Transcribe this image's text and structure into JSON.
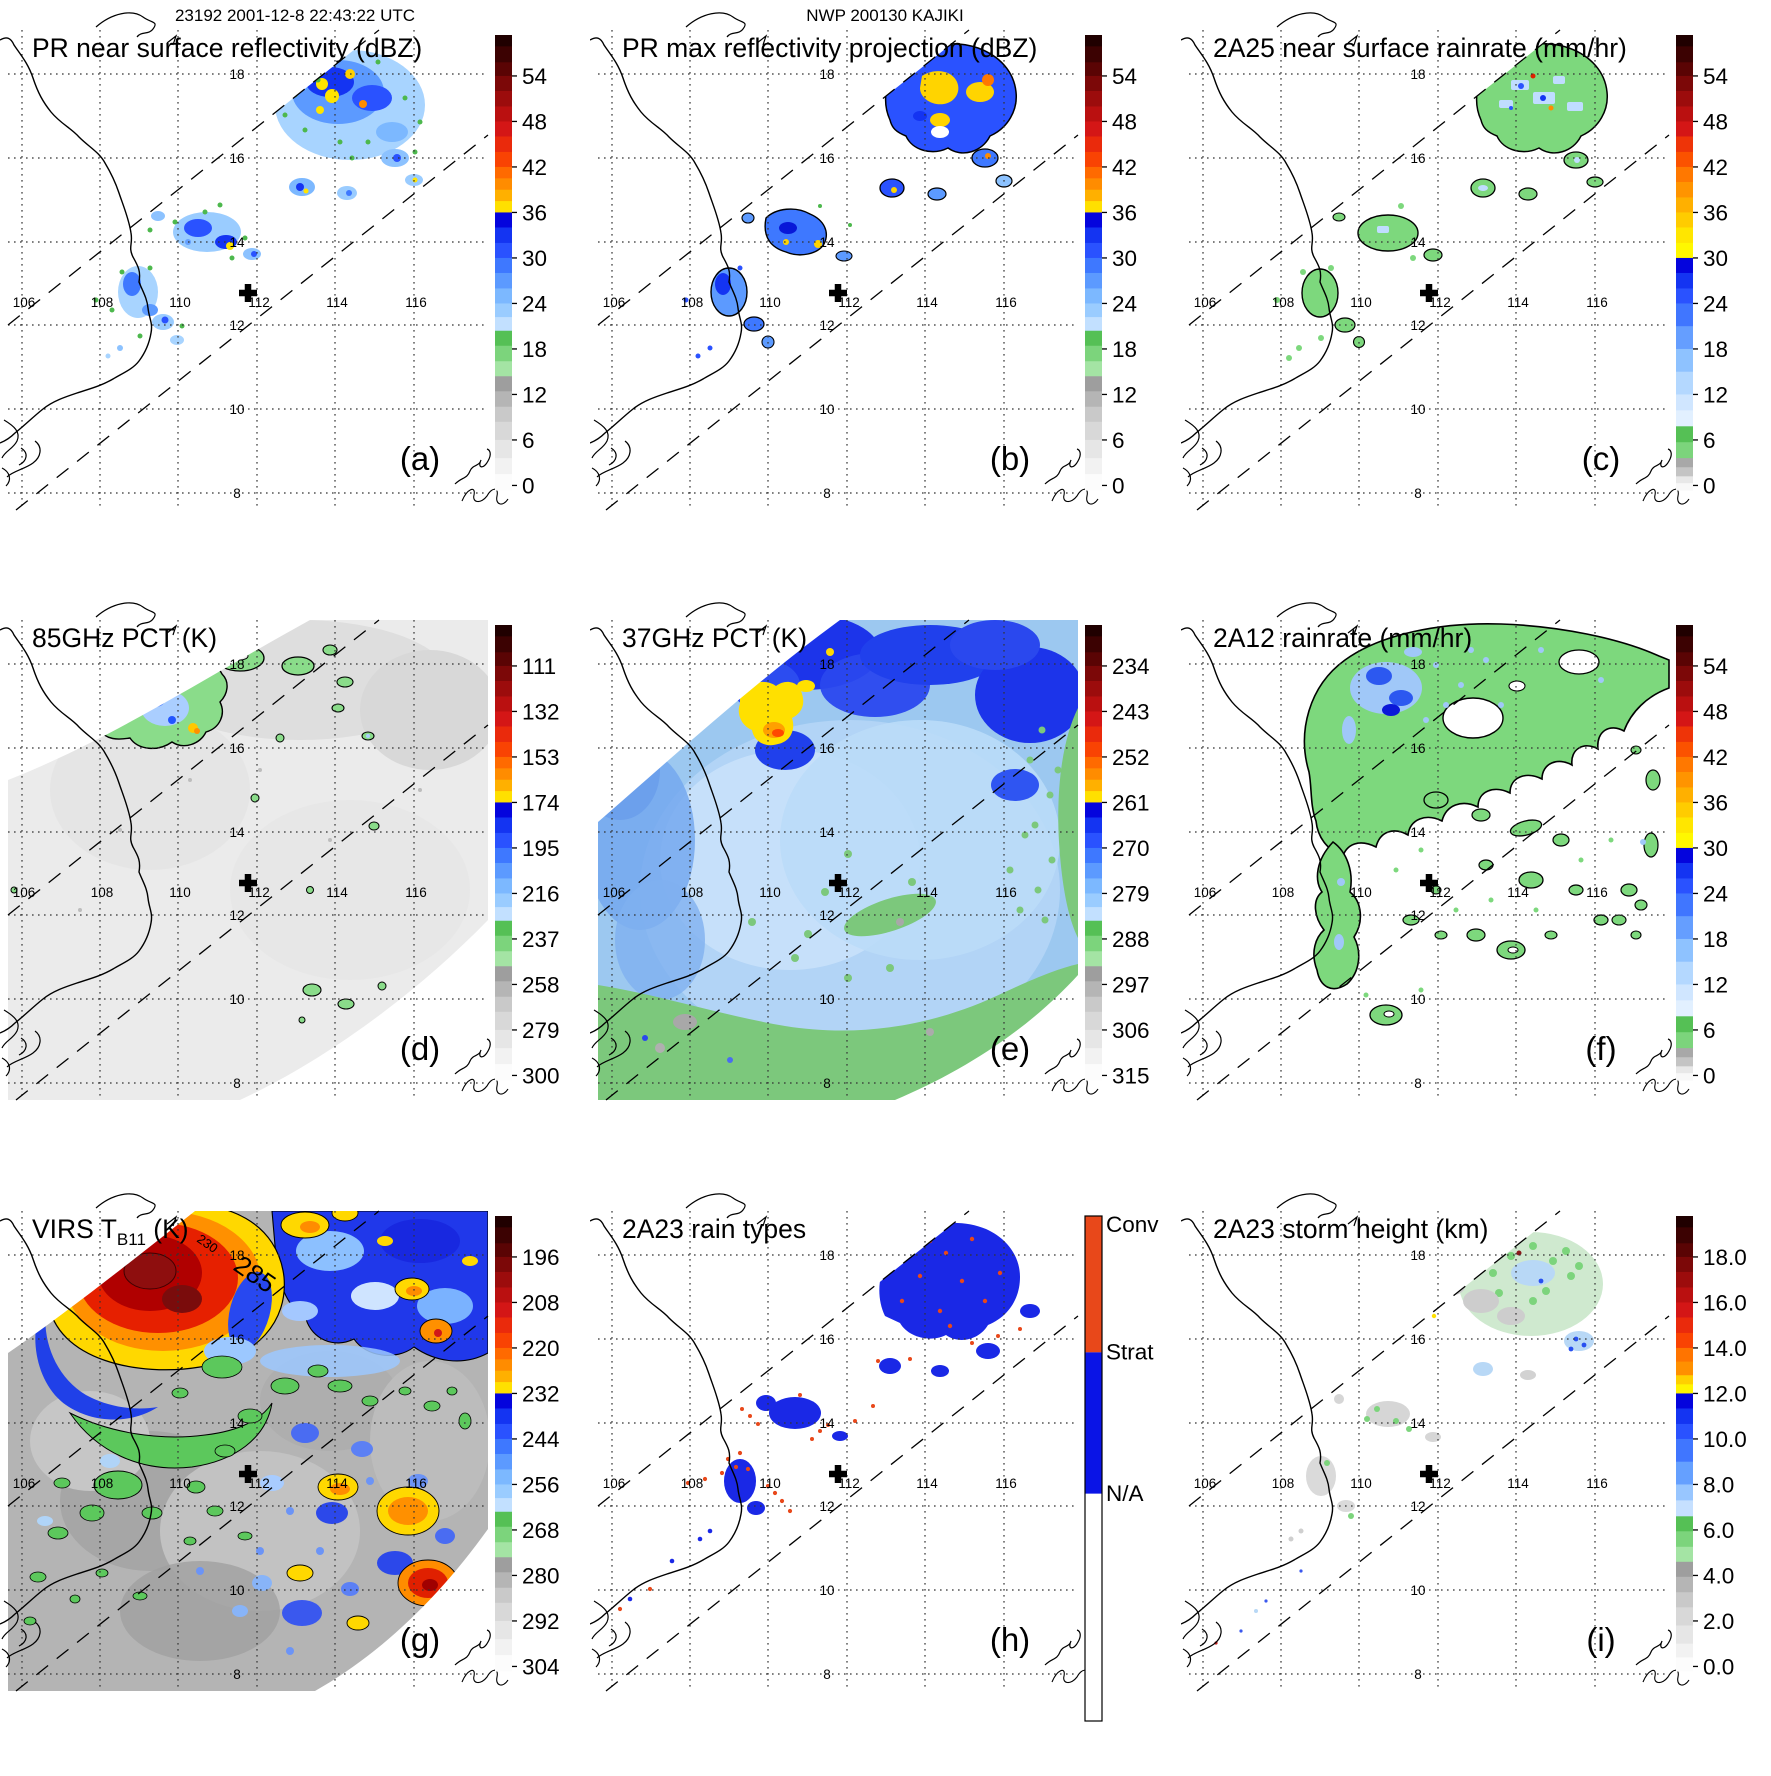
{
  "headers": {
    "row1_left": "23192 2001-12-8 22:43:22 UTC",
    "row1_right": "NWP 200130 KAJIKI"
  },
  "map": {
    "lon_labels": [
      "106",
      "108",
      "110",
      "112",
      "114",
      "116"
    ],
    "lat_labels": [
      "18",
      "16",
      "14",
      "12",
      "10",
      "8"
    ],
    "annotations": [
      "285",
      "230"
    ]
  },
  "colors": {
    "convective": "#e8481a",
    "stratiform": "#0a14e6",
    "not_available": "#ffffff",
    "rain_green": "#7dd87d",
    "cold_cloud_yellow": "#ffd800",
    "cold_cloud_red": "#e62000",
    "swath_gray": "#ebebeb",
    "pct37_blue": "#9cc8f0"
  },
  "panels": [
    {
      "letter": "(a)",
      "title": "PR near surface reflectivity (dBZ)",
      "title_sub": "",
      "title_suffix": "",
      "colorbar": {
        "style": "S1",
        "ticks": [
          "54",
          "48",
          "42",
          "36",
          "30",
          "24",
          "18",
          "12",
          "6",
          "0"
        ]
      }
    },
    {
      "letter": "(b)",
      "title": "PR max reflectivity projection (dBZ)",
      "title_sub": "",
      "title_suffix": "",
      "colorbar": {
        "style": "S1",
        "ticks": [
          "54",
          "48",
          "42",
          "36",
          "30",
          "24",
          "18",
          "12",
          "6",
          "0"
        ]
      }
    },
    {
      "letter": "(c)",
      "title": "2A25 near surface rainrate (mm/hr)",
      "title_sub": "",
      "title_suffix": "",
      "colorbar": {
        "style": "S2",
        "ticks": [
          "54",
          "48",
          "42",
          "36",
          "30",
          "24",
          "18",
          "12",
          "6",
          "0"
        ]
      }
    },
    {
      "letter": "(d)",
      "title": "85GHz PCT (K)",
      "title_sub": "",
      "title_suffix": "",
      "colorbar": {
        "style": "S1",
        "ticks": [
          "111",
          "132",
          "153",
          "174",
          "195",
          "216",
          "237",
          "258",
          "279",
          "300"
        ]
      }
    },
    {
      "letter": "(e)",
      "title": "37GHz PCT (K)",
      "title_sub": "",
      "title_suffix": "",
      "colorbar": {
        "style": "S1",
        "ticks": [
          "234",
          "243",
          "252",
          "261",
          "270",
          "279",
          "288",
          "297",
          "306",
          "315"
        ]
      }
    },
    {
      "letter": "(f)",
      "title": "2A12 rainrate (mm/hr)",
      "title_sub": "",
      "title_suffix": "",
      "colorbar": {
        "style": "S2",
        "ticks": [
          "54",
          "48",
          "42",
          "36",
          "30",
          "24",
          "18",
          "12",
          "6",
          "0"
        ]
      }
    },
    {
      "letter": "(g)",
      "title": "VIRS T",
      "title_sub": "B11",
      "title_suffix": " (K)",
      "colorbar": {
        "style": "S1",
        "ticks": [
          "196",
          "208",
          "220",
          "232",
          "244",
          "256",
          "268",
          "280",
          "292",
          "304"
        ]
      }
    },
    {
      "letter": "(h)",
      "title": "2A23 rain types",
      "title_sub": "",
      "title_suffix": "",
      "colorbar": {
        "style": "cat",
        "ticks": [
          "Conv",
          "Strat",
          "N/A"
        ]
      }
    },
    {
      "letter": "(i)",
      "title": "2A23 storm height (km)",
      "title_sub": "",
      "title_suffix": "",
      "colorbar": {
        "style": "S3",
        "ticks": [
          "18.0",
          "16.0",
          "14.0",
          "12.0",
          "10.0",
          "8.0",
          "6.0",
          "4.0",
          "2.0",
          "0.0"
        ]
      }
    }
  ]
}
